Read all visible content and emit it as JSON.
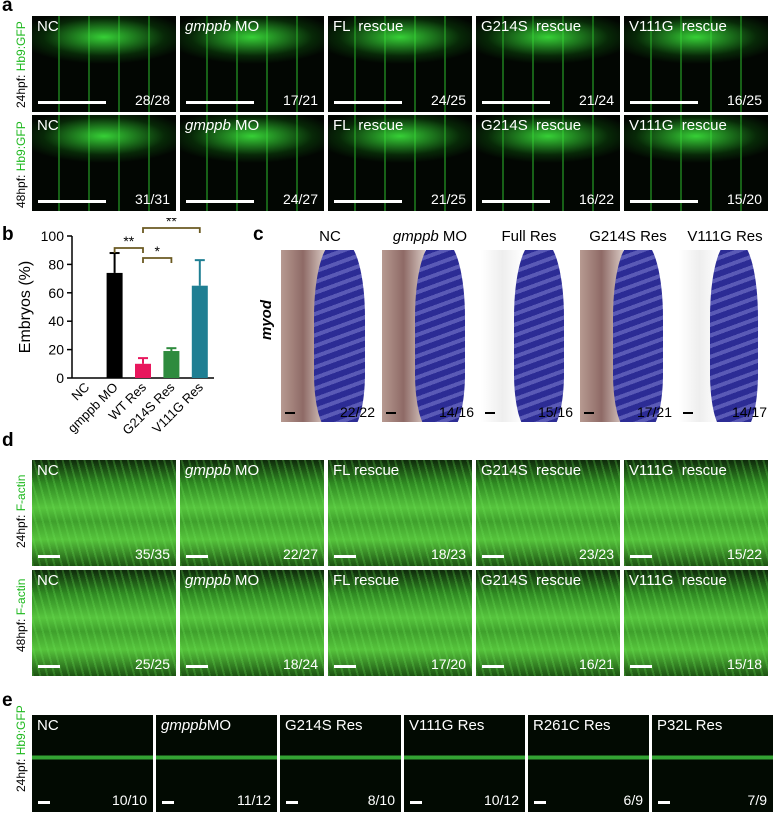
{
  "panel_a": {
    "letter": "a",
    "rows": [
      {
        "label_time": "24hpf: ",
        "label_marker": "Hb9:GFP",
        "images": [
          {
            "title": "NC",
            "italic": "",
            "count": "28/28"
          },
          {
            "title": " MO",
            "italic": "gmppb",
            "count": "17/21"
          },
          {
            "title": "FL  rescue",
            "italic": "",
            "count": "24/25"
          },
          {
            "title": "G214S  rescue",
            "italic": "",
            "count": "21/24"
          },
          {
            "title": "V111G  rescue",
            "italic": "",
            "count": "16/25"
          }
        ]
      },
      {
        "label_time": "48hpf: ",
        "label_marker": "Hb9:GFP",
        "images": [
          {
            "title": "NC",
            "italic": "",
            "count": "31/31"
          },
          {
            "title": " MO",
            "italic": "gmppb",
            "count": "24/27"
          },
          {
            "title": "FL  rescue",
            "italic": "",
            "count": "21/25"
          },
          {
            "title": "G214S  rescue",
            "italic": "",
            "count": "16/22"
          },
          {
            "title": "V111G  rescue",
            "italic": "",
            "count": "15/20"
          }
        ]
      }
    ]
  },
  "panel_b": {
    "letter": "b",
    "significance": [
      "**",
      "*",
      "**"
    ]
  },
  "chart_data": {
    "type": "bar",
    "categories": [
      "NC",
      "gmppb MO",
      "WT Res",
      "G214S Res",
      "V111G Res"
    ],
    "values": [
      0,
      74,
      10,
      19,
      65
    ],
    "errors": [
      0,
      14,
      4,
      2,
      18
    ],
    "colors": [
      "#000000",
      "#000000",
      "#e8175d",
      "#2e8b3e",
      "#1f7f93"
    ],
    "ylabel": "Embryos (%)",
    "ylim": [
      0,
      100
    ],
    "yticks": [
      "0",
      "20",
      "40",
      "60",
      "80",
      "100"
    ]
  },
  "panel_c": {
    "letter": "c",
    "side_label": "myod",
    "images": [
      {
        "title": "NC",
        "italic": "",
        "count": "22/22"
      },
      {
        "title": " MO",
        "italic": "gmppb",
        "count": "14/16"
      },
      {
        "title": "Full Res",
        "italic": "",
        "count": "15/16"
      },
      {
        "title": "G214S Res",
        "italic": "",
        "count": "17/21"
      },
      {
        "title": "V111G Res",
        "italic": "",
        "count": "14/17"
      }
    ]
  },
  "panel_d": {
    "letter": "d",
    "rows": [
      {
        "label_time": "24hpf: ",
        "label_marker": "F-actin",
        "images": [
          {
            "title": "NC",
            "italic": "",
            "count": "35/35"
          },
          {
            "title": " MO",
            "italic": "gmppb",
            "count": "22/27"
          },
          {
            "title": "FL rescue",
            "italic": "",
            "count": "18/23"
          },
          {
            "title": "G214S  rescue",
            "italic": "",
            "count": "23/23"
          },
          {
            "title": "V111G  rescue",
            "italic": "",
            "count": "15/22"
          }
        ]
      },
      {
        "label_time": "48hpf: ",
        "label_marker": "F-actin",
        "images": [
          {
            "title": "NC",
            "italic": "",
            "count": "25/25"
          },
          {
            "title": " MO",
            "italic": "gmppb",
            "count": "18/24"
          },
          {
            "title": "FL rescue",
            "italic": "",
            "count": "17/20"
          },
          {
            "title": "G214S  rescue",
            "italic": "",
            "count": "16/21"
          },
          {
            "title": "V111G  rescue",
            "italic": "",
            "count": "15/18"
          }
        ]
      }
    ]
  },
  "panel_e": {
    "letter": "e",
    "label_time": "24hpf: ",
    "label_marker": "Hb9:GFP",
    "images": [
      {
        "title": "NC",
        "italic": "",
        "count": "10/10"
      },
      {
        "title": "MO",
        "italic": "gmppb",
        "count": "11/12"
      },
      {
        "title": "G214S Res",
        "italic": "",
        "count": "8/10"
      },
      {
        "title": "V111G Res",
        "italic": "",
        "count": "10/12"
      },
      {
        "title": "R261C Res",
        "italic": "",
        "count": "6/9"
      },
      {
        "title": "P32L Res",
        "italic": "",
        "count": "7/9"
      }
    ]
  }
}
